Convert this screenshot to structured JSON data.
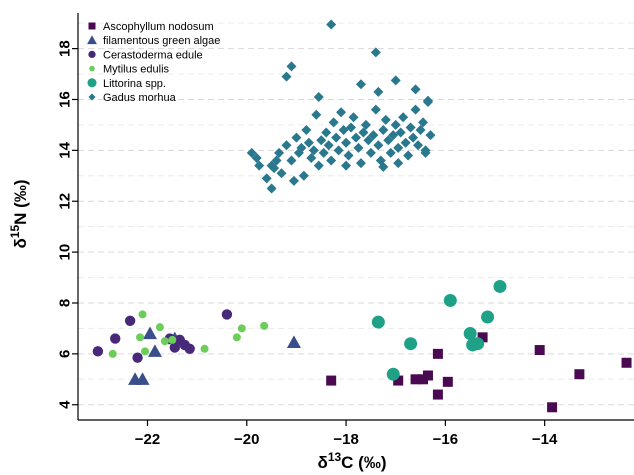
{
  "chart_data": {
    "type": "scatter",
    "title": "",
    "xlabel": "δ13C (‰)",
    "ylabel": "δ15N (‰)",
    "xlabel_parts": {
      "delta": "δ",
      "sup": "13",
      "base": "C (‰)"
    },
    "ylabel_parts": {
      "delta": "δ",
      "sup": "15",
      "base": "N (‰)"
    },
    "xlim": [
      -23.4,
      -12.2
    ],
    "ylim": [
      3.4,
      19.4
    ],
    "xticks": [
      -22,
      -20,
      -18,
      -16,
      -14
    ],
    "xtick_labels": [
      "−22",
      "−20",
      "−18",
      "−16",
      "−14"
    ],
    "yticks": [
      4,
      6,
      8,
      10,
      12,
      14,
      16,
      18
    ],
    "ytick_labels": [
      "4",
      "6",
      "8",
      "10",
      "12",
      "14",
      "16",
      "18"
    ],
    "grid": "horizontal dashed",
    "legend_position": "top-left",
    "series": [
      {
        "name": "Ascophyllum nodosum",
        "marker": "square",
        "color": "#4a0a52",
        "points": [
          {
            "x": -18.3,
            "y": 4.95
          },
          {
            "x": -16.95,
            "y": 4.95
          },
          {
            "x": -16.6,
            "y": 5.0
          },
          {
            "x": -16.45,
            "y": 5.0
          },
          {
            "x": -16.35,
            "y": 5.15
          },
          {
            "x": -16.15,
            "y": 4.4
          },
          {
            "x": -16.15,
            "y": 6.0
          },
          {
            "x": -15.95,
            "y": 4.9
          },
          {
            "x": -15.25,
            "y": 6.65
          },
          {
            "x": -14.1,
            "y": 6.15
          },
          {
            "x": -13.85,
            "y": 3.9
          },
          {
            "x": -13.3,
            "y": 5.2
          },
          {
            "x": -12.35,
            "y": 5.65
          }
        ]
      },
      {
        "name": "filamentous green algae",
        "marker": "triangle",
        "color": "#3a4e8c",
        "points": [
          {
            "x": -22.25,
            "y": 5.0
          },
          {
            "x": -22.1,
            "y": 5.0
          },
          {
            "x": -21.95,
            "y": 6.8
          },
          {
            "x": -21.85,
            "y": 6.1
          },
          {
            "x": -21.45,
            "y": 6.6
          },
          {
            "x": -19.05,
            "y": 6.45
          }
        ]
      },
      {
        "name": "Cerastoderma edule",
        "marker": "circle",
        "color": "#482878",
        "points": [
          {
            "x": -23.0,
            "y": 6.1
          },
          {
            "x": -22.65,
            "y": 6.6
          },
          {
            "x": -22.35,
            "y": 7.3
          },
          {
            "x": -22.2,
            "y": 5.85
          },
          {
            "x": -21.55,
            "y": 6.6
          },
          {
            "x": -21.45,
            "y": 6.25
          },
          {
            "x": -21.35,
            "y": 6.55
          },
          {
            "x": -21.25,
            "y": 6.35
          },
          {
            "x": -21.15,
            "y": 6.2
          },
          {
            "x": -20.4,
            "y": 7.55
          }
        ]
      },
      {
        "name": "Mytilus edulis",
        "marker": "small-circle",
        "color": "#6ccd5a",
        "points": [
          {
            "x": -22.7,
            "y": 6.0
          },
          {
            "x": -22.15,
            "y": 6.65
          },
          {
            "x": -22.1,
            "y": 7.55
          },
          {
            "x": -22.05,
            "y": 6.1
          },
          {
            "x": -21.75,
            "y": 7.05
          },
          {
            "x": -21.65,
            "y": 6.5
          },
          {
            "x": -21.5,
            "y": 6.55
          },
          {
            "x": -20.85,
            "y": 6.2
          },
          {
            "x": -20.2,
            "y": 6.65
          },
          {
            "x": -20.1,
            "y": 7.0
          },
          {
            "x": -19.65,
            "y": 7.1
          }
        ]
      },
      {
        "name": "Littorina spp.",
        "marker": "large-circle",
        "color": "#1fa187",
        "points": [
          {
            "x": -17.35,
            "y": 7.25
          },
          {
            "x": -17.05,
            "y": 5.2
          },
          {
            "x": -16.7,
            "y": 6.4
          },
          {
            "x": -15.9,
            "y": 8.1
          },
          {
            "x": -15.5,
            "y": 6.8
          },
          {
            "x": -15.45,
            "y": 6.35
          },
          {
            "x": -15.35,
            "y": 6.4
          },
          {
            "x": -15.15,
            "y": 7.45
          },
          {
            "x": -14.9,
            "y": 8.65
          }
        ]
      },
      {
        "name": "Gadus morhua",
        "marker": "diamond",
        "color": "#2a788e",
        "points": [
          {
            "x": -19.9,
            "y": 13.9
          },
          {
            "x": -19.8,
            "y": 13.7
          },
          {
            "x": -19.75,
            "y": 13.4
          },
          {
            "x": -19.6,
            "y": 12.9
          },
          {
            "x": -19.5,
            "y": 12.5
          },
          {
            "x": -19.45,
            "y": 13.3
          },
          {
            "x": -19.4,
            "y": 13.6
          },
          {
            "x": -19.35,
            "y": 13.9
          },
          {
            "x": -19.3,
            "y": 13.1
          },
          {
            "x": -19.2,
            "y": 14.2
          },
          {
            "x": -19.1,
            "y": 13.6
          },
          {
            "x": -19.05,
            "y": 12.8
          },
          {
            "x": -19.0,
            "y": 14.5
          },
          {
            "x": -18.95,
            "y": 13.9
          },
          {
            "x": -18.9,
            "y": 14.1
          },
          {
            "x": -18.85,
            "y": 13.0
          },
          {
            "x": -18.8,
            "y": 14.8
          },
          {
            "x": -18.75,
            "y": 14.3
          },
          {
            "x": -18.7,
            "y": 13.7
          },
          {
            "x": -18.65,
            "y": 14.0
          },
          {
            "x": -18.6,
            "y": 15.4
          },
          {
            "x": -18.55,
            "y": 13.4
          },
          {
            "x": -18.5,
            "y": 14.4
          },
          {
            "x": -18.45,
            "y": 13.9
          },
          {
            "x": -18.4,
            "y": 14.7
          },
          {
            "x": -18.35,
            "y": 14.2
          },
          {
            "x": -18.3,
            "y": 13.6
          },
          {
            "x": -18.25,
            "y": 15.1
          },
          {
            "x": -18.2,
            "y": 14.5
          },
          {
            "x": -18.15,
            "y": 14.0
          },
          {
            "x": -18.1,
            "y": 15.5
          },
          {
            "x": -18.05,
            "y": 14.8
          },
          {
            "x": -18.0,
            "y": 14.3
          },
          {
            "x": -17.95,
            "y": 13.8
          },
          {
            "x": -17.9,
            "y": 14.9
          },
          {
            "x": -17.85,
            "y": 15.3
          },
          {
            "x": -17.8,
            "y": 14.5
          },
          {
            "x": -17.75,
            "y": 14.1
          },
          {
            "x": -17.7,
            "y": 13.5
          },
          {
            "x": -17.65,
            "y": 14.7
          },
          {
            "x": -17.6,
            "y": 15.0
          },
          {
            "x": -17.55,
            "y": 14.4
          },
          {
            "x": -17.5,
            "y": 13.9
          },
          {
            "x": -17.45,
            "y": 14.6
          },
          {
            "x": -17.4,
            "y": 15.6
          },
          {
            "x": -17.35,
            "y": 14.2
          },
          {
            "x": -17.3,
            "y": 13.6
          },
          {
            "x": -17.25,
            "y": 14.8
          },
          {
            "x": -17.2,
            "y": 15.2
          },
          {
            "x": -17.15,
            "y": 14.4
          },
          {
            "x": -17.1,
            "y": 13.9
          },
          {
            "x": -17.05,
            "y": 14.6
          },
          {
            "x": -17.0,
            "y": 15.0
          },
          {
            "x": -16.95,
            "y": 14.1
          },
          {
            "x": -16.9,
            "y": 14.7
          },
          {
            "x": -16.85,
            "y": 15.3
          },
          {
            "x": -16.8,
            "y": 14.3
          },
          {
            "x": -16.75,
            "y": 13.8
          },
          {
            "x": -16.7,
            "y": 14.9
          },
          {
            "x": -16.65,
            "y": 14.5
          },
          {
            "x": -16.6,
            "y": 15.6
          },
          {
            "x": -16.55,
            "y": 14.2
          },
          {
            "x": -16.5,
            "y": 14.8
          },
          {
            "x": -16.45,
            "y": 15.1
          },
          {
            "x": -16.4,
            "y": 13.9
          },
          {
            "x": -16.35,
            "y": 15.9
          },
          {
            "x": -16.3,
            "y": 14.6
          },
          {
            "x": -19.2,
            "y": 16.9
          },
          {
            "x": -19.1,
            "y": 17.3
          },
          {
            "x": -18.3,
            "y": 18.95
          },
          {
            "x": -17.4,
            "y": 17.85
          },
          {
            "x": -17.35,
            "y": 16.3
          },
          {
            "x": -17.0,
            "y": 16.75
          },
          {
            "x": -16.6,
            "y": 16.4
          },
          {
            "x": -16.35,
            "y": 15.95
          },
          {
            "x": -18.55,
            "y": 16.1
          },
          {
            "x": -17.7,
            "y": 16.6
          },
          {
            "x": -19.5,
            "y": 13.4
          },
          {
            "x": -18.0,
            "y": 13.4
          },
          {
            "x": -17.25,
            "y": 13.35
          },
          {
            "x": -16.95,
            "y": 13.5
          },
          {
            "x": -16.4,
            "y": 14.0
          }
        ]
      }
    ]
  }
}
